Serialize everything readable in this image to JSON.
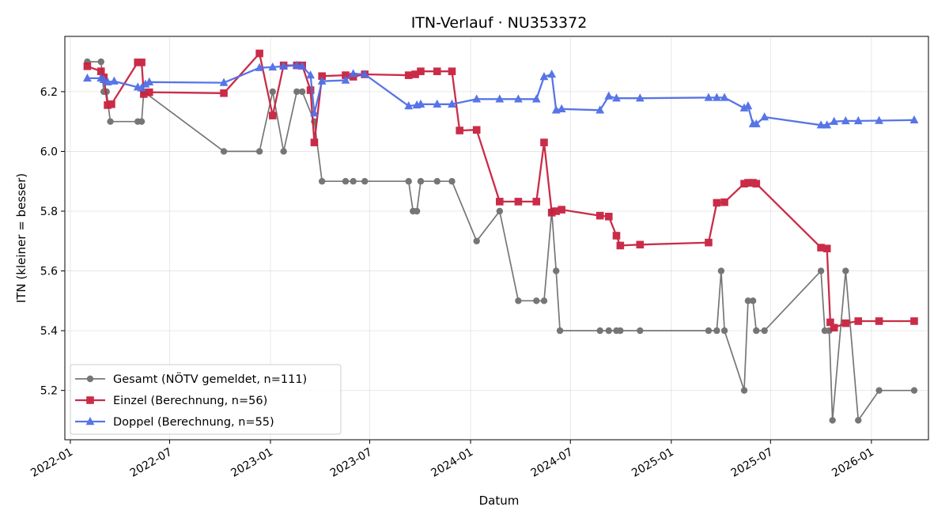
{
  "chart_data": {
    "type": "line",
    "title": "ITN-Verlauf · NU353372",
    "xlabel": "Datum",
    "ylabel": "ITN  (kleiner = besser)",
    "x_ticks": [
      "2022-01",
      "2022-07",
      "2023-01",
      "2023-07",
      "2024-01",
      "2024-07",
      "2025-01",
      "2025-07",
      "2026-01"
    ],
    "y_ticks": [
      "5.2",
      "5.4",
      "5.6",
      "5.8",
      "6.0",
      "6.2"
    ],
    "xlim": [
      "2021-12-22",
      "2026-04-15"
    ],
    "ylim": [
      5.035,
      6.385
    ],
    "grid": true,
    "legend_position": "lower-left",
    "series": [
      {
        "name": "Gesamt (NÖTV gemeldet, n=111)",
        "color": "#555555",
        "marker": "circle",
        "points": [
          [
            "2022-02-01",
            6.3
          ],
          [
            "2022-02-26",
            6.3
          ],
          [
            "2022-03-03",
            6.2
          ],
          [
            "2022-03-08",
            6.2
          ],
          [
            "2022-03-15",
            6.1
          ],
          [
            "2022-05-04",
            6.1
          ],
          [
            "2022-05-11",
            6.1
          ],
          [
            "2022-05-15",
            6.2
          ],
          [
            "2022-10-08",
            6.0
          ],
          [
            "2022-12-12",
            6.0
          ],
          [
            "2023-01-05",
            6.2
          ],
          [
            "2023-01-25",
            6.0
          ],
          [
            "2023-02-18",
            6.2
          ],
          [
            "2023-02-28",
            6.2
          ],
          [
            "2023-03-22",
            6.1
          ],
          [
            "2023-04-05",
            5.9
          ],
          [
            "2023-05-18",
            5.9
          ],
          [
            "2023-06-01",
            5.9
          ],
          [
            "2023-06-22",
            5.9
          ],
          [
            "2023-09-10",
            5.9
          ],
          [
            "2023-09-18",
            5.8
          ],
          [
            "2023-09-25",
            5.8
          ],
          [
            "2023-10-02",
            5.9
          ],
          [
            "2023-11-01",
            5.9
          ],
          [
            "2023-11-28",
            5.9
          ],
          [
            "2024-01-12",
            5.7
          ],
          [
            "2024-02-23",
            5.8
          ],
          [
            "2024-03-28",
            5.5
          ],
          [
            "2024-04-30",
            5.5
          ],
          [
            "2024-05-14",
            5.5
          ],
          [
            "2024-05-28",
            5.8
          ],
          [
            "2024-06-05",
            5.6
          ],
          [
            "2024-06-12",
            5.4
          ],
          [
            "2024-08-24",
            5.4
          ],
          [
            "2024-09-09",
            5.4
          ],
          [
            "2024-09-23",
            5.4
          ],
          [
            "2024-09-30",
            5.4
          ],
          [
            "2024-11-05",
            5.4
          ],
          [
            "2025-03-10",
            5.4
          ],
          [
            "2025-03-25",
            5.4
          ],
          [
            "2025-04-02",
            5.6
          ],
          [
            "2025-04-08",
            5.4
          ],
          [
            "2025-05-14",
            5.2
          ],
          [
            "2025-05-21",
            5.5
          ],
          [
            "2025-05-30",
            5.5
          ],
          [
            "2025-06-05",
            5.4
          ],
          [
            "2025-06-20",
            5.4
          ],
          [
            "2025-10-01",
            5.6
          ],
          [
            "2025-10-08",
            5.4
          ],
          [
            "2025-10-16",
            5.4
          ],
          [
            "2025-10-22",
            5.1
          ],
          [
            "2025-11-15",
            5.6
          ],
          [
            "2025-12-08",
            5.1
          ],
          [
            "2026-01-15",
            5.2
          ],
          [
            "2026-03-20",
            5.2
          ]
        ]
      },
      {
        "name": "Einzel (Berechnung, n=56)",
        "color": "#c8213f",
        "marker": "square",
        "points": [
          [
            "2022-02-01",
            6.285
          ],
          [
            "2022-02-26",
            6.268
          ],
          [
            "2022-03-03",
            6.248
          ],
          [
            "2022-03-10",
            6.155
          ],
          [
            "2022-03-17",
            6.158
          ],
          [
            "2022-05-04",
            6.298
          ],
          [
            "2022-05-11",
            6.298
          ],
          [
            "2022-05-15",
            6.192
          ],
          [
            "2022-05-25",
            6.198
          ],
          [
            "2022-10-08",
            6.195
          ],
          [
            "2022-12-12",
            6.328
          ],
          [
            "2023-01-05",
            6.12
          ],
          [
            "2023-01-25",
            6.288
          ],
          [
            "2023-02-18",
            6.288
          ],
          [
            "2023-02-28",
            6.288
          ],
          [
            "2023-03-15",
            6.205
          ],
          [
            "2023-03-22",
            6.03
          ],
          [
            "2023-04-05",
            6.252
          ],
          [
            "2023-05-18",
            6.255
          ],
          [
            "2023-06-01",
            6.25
          ],
          [
            "2023-06-22",
            6.258
          ],
          [
            "2023-09-10",
            6.255
          ],
          [
            "2023-09-22",
            6.258
          ],
          [
            "2023-10-02",
            6.268
          ],
          [
            "2023-11-01",
            6.268
          ],
          [
            "2023-11-28",
            6.268
          ],
          [
            "2023-12-12",
            6.07
          ],
          [
            "2024-01-12",
            6.072
          ],
          [
            "2024-02-23",
            5.832
          ],
          [
            "2024-03-28",
            5.832
          ],
          [
            "2024-04-30",
            5.832
          ],
          [
            "2024-05-14",
            6.03
          ],
          [
            "2024-05-28",
            5.795
          ],
          [
            "2024-06-05",
            5.8
          ],
          [
            "2024-06-15",
            5.805
          ],
          [
            "2024-08-24",
            5.785
          ],
          [
            "2024-09-09",
            5.782
          ],
          [
            "2024-09-23",
            5.718
          ],
          [
            "2024-09-30",
            5.685
          ],
          [
            "2024-11-05",
            5.688
          ],
          [
            "2025-03-10",
            5.695
          ],
          [
            "2025-03-25",
            5.828
          ],
          [
            "2025-04-08",
            5.83
          ],
          [
            "2025-05-14",
            5.892
          ],
          [
            "2025-05-21",
            5.895
          ],
          [
            "2025-05-30",
            5.895
          ],
          [
            "2025-06-05",
            5.892
          ],
          [
            "2025-10-01",
            5.678
          ],
          [
            "2025-10-12",
            5.675
          ],
          [
            "2025-10-18",
            5.428
          ],
          [
            "2025-10-25",
            5.41
          ],
          [
            "2025-11-15",
            5.425
          ],
          [
            "2025-12-08",
            5.432
          ],
          [
            "2026-01-15",
            5.432
          ],
          [
            "2026-03-20",
            5.432
          ]
        ]
      },
      {
        "name": "Doppel (Berechnung, n=55)",
        "color": "#4f6ee6",
        "marker": "triangle",
        "points": [
          [
            "2022-02-01",
            6.245
          ],
          [
            "2022-02-26",
            6.245
          ],
          [
            "2022-03-03",
            6.24
          ],
          [
            "2022-03-10",
            6.232
          ],
          [
            "2022-03-22",
            6.235
          ],
          [
            "2022-05-04",
            6.215
          ],
          [
            "2022-05-11",
            6.212
          ],
          [
            "2022-05-18",
            6.225
          ],
          [
            "2022-05-25",
            6.232
          ],
          [
            "2022-10-08",
            6.23
          ],
          [
            "2022-12-12",
            6.28
          ],
          [
            "2023-01-05",
            6.282
          ],
          [
            "2023-01-25",
            6.285
          ],
          [
            "2023-02-18",
            6.288
          ],
          [
            "2023-02-28",
            6.285
          ],
          [
            "2023-03-15",
            6.255
          ],
          [
            "2023-03-22",
            6.128
          ],
          [
            "2023-04-05",
            6.235
          ],
          [
            "2023-05-18",
            6.238
          ],
          [
            "2023-06-01",
            6.26
          ],
          [
            "2023-06-22",
            6.258
          ],
          [
            "2023-09-10",
            6.152
          ],
          [
            "2023-09-25",
            6.155
          ],
          [
            "2023-10-02",
            6.158
          ],
          [
            "2023-11-01",
            6.158
          ],
          [
            "2023-11-28",
            6.158
          ],
          [
            "2024-01-12",
            6.175
          ],
          [
            "2024-02-23",
            6.175
          ],
          [
            "2024-03-28",
            6.175
          ],
          [
            "2024-04-30",
            6.175
          ],
          [
            "2024-05-14",
            6.25
          ],
          [
            "2024-05-28",
            6.258
          ],
          [
            "2024-06-05",
            6.138
          ],
          [
            "2024-06-15",
            6.142
          ],
          [
            "2024-08-24",
            6.138
          ],
          [
            "2024-09-09",
            6.185
          ],
          [
            "2024-09-23",
            6.178
          ],
          [
            "2024-11-05",
            6.178
          ],
          [
            "2025-03-10",
            6.18
          ],
          [
            "2025-03-25",
            6.18
          ],
          [
            "2025-04-08",
            6.18
          ],
          [
            "2025-05-14",
            6.145
          ],
          [
            "2025-05-21",
            6.152
          ],
          [
            "2025-05-30",
            6.092
          ],
          [
            "2025-06-05",
            6.092
          ],
          [
            "2025-06-20",
            6.115
          ],
          [
            "2025-10-01",
            6.088
          ],
          [
            "2025-10-12",
            6.088
          ],
          [
            "2025-10-25",
            6.1
          ],
          [
            "2025-11-15",
            6.102
          ],
          [
            "2025-12-08",
            6.102
          ],
          [
            "2026-01-15",
            6.103
          ],
          [
            "2026-03-20",
            6.105
          ]
        ]
      }
    ]
  }
}
